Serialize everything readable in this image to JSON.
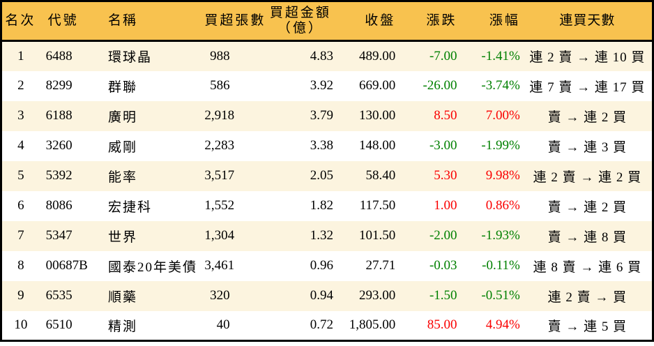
{
  "table": {
    "columns": [
      {
        "key": "rank",
        "label": "名次"
      },
      {
        "key": "code",
        "label": "代號"
      },
      {
        "key": "name",
        "label": "名稱"
      },
      {
        "key": "volume",
        "label": "買超張數"
      },
      {
        "key": "amount",
        "label": "買超金額",
        "sublabel": "（億）"
      },
      {
        "key": "close",
        "label": "收盤"
      },
      {
        "key": "change",
        "label": "漲跌",
        "colored": true
      },
      {
        "key": "pct",
        "label": "漲幅",
        "colored": true
      },
      {
        "key": "streak",
        "label": "連買天數"
      }
    ],
    "rows": [
      {
        "rank": "1",
        "code": "6488",
        "name": "環球晶",
        "volume": "988",
        "amount": "4.83",
        "close": "489.00",
        "change": "-7.00",
        "pct": "-1.41%",
        "streak": "連 2 賣 → 連 10 買",
        "trend": "down"
      },
      {
        "rank": "2",
        "code": "8299",
        "name": "群聯",
        "volume": "586",
        "amount": "3.92",
        "close": "669.00",
        "change": "-26.00",
        "pct": "-3.74%",
        "streak": "連 7 賣 → 連 17 買",
        "trend": "down"
      },
      {
        "rank": "3",
        "code": "6188",
        "name": "廣明",
        "volume": "2,918",
        "amount": "3.79",
        "close": "130.00",
        "change": "8.50",
        "pct": "7.00%",
        "streak": "賣 → 連 2 買",
        "trend": "up"
      },
      {
        "rank": "4",
        "code": "3260",
        "name": "威剛",
        "volume": "2,283",
        "amount": "3.38",
        "close": "148.00",
        "change": "-3.00",
        "pct": "-1.99%",
        "streak": "賣 → 連 3 買",
        "trend": "down"
      },
      {
        "rank": "5",
        "code": "5392",
        "name": "能率",
        "volume": "3,517",
        "amount": "2.05",
        "close": "58.40",
        "change": "5.30",
        "pct": "9.98%",
        "streak": "連 2 賣 → 連 2 買",
        "trend": "up"
      },
      {
        "rank": "6",
        "code": "8086",
        "name": "宏捷科",
        "volume": "1,552",
        "amount": "1.82",
        "close": "117.50",
        "change": "1.00",
        "pct": "0.86%",
        "streak": "賣 → 連 2 買",
        "trend": "up"
      },
      {
        "rank": "7",
        "code": "5347",
        "name": "世界",
        "volume": "1,304",
        "amount": "1.32",
        "close": "101.50",
        "change": "-2.00",
        "pct": "-1.93%",
        "streak": "賣 → 連 8 買",
        "trend": "down"
      },
      {
        "rank": "8",
        "code": "00687B",
        "name": "國泰20年美債",
        "volume": "3,461",
        "amount": "0.96",
        "close": "27.71",
        "change": "-0.03",
        "pct": "-0.11%",
        "streak": "連 8 賣 → 連 6 買",
        "trend": "down"
      },
      {
        "rank": "9",
        "code": "6535",
        "name": "順藥",
        "volume": "320",
        "amount": "0.94",
        "close": "293.00",
        "change": "-1.50",
        "pct": "-0.51%",
        "streak": "連 2 賣 → 買",
        "trend": "down"
      },
      {
        "rank": "10",
        "code": "6510",
        "name": "精測",
        "volume": "40",
        "amount": "0.72",
        "close": "1,805.00",
        "change": "85.00",
        "pct": "4.94%",
        "streak": "賣 → 連 5 買",
        "trend": "up"
      }
    ]
  },
  "colors": {
    "header_bg": "#F8C24F",
    "row_alt_bg": "#FCF4DF",
    "row_bg": "#FFFFFF",
    "up": "#FA0000",
    "down": "#008000",
    "border": "#000000",
    "text": "#000000"
  }
}
